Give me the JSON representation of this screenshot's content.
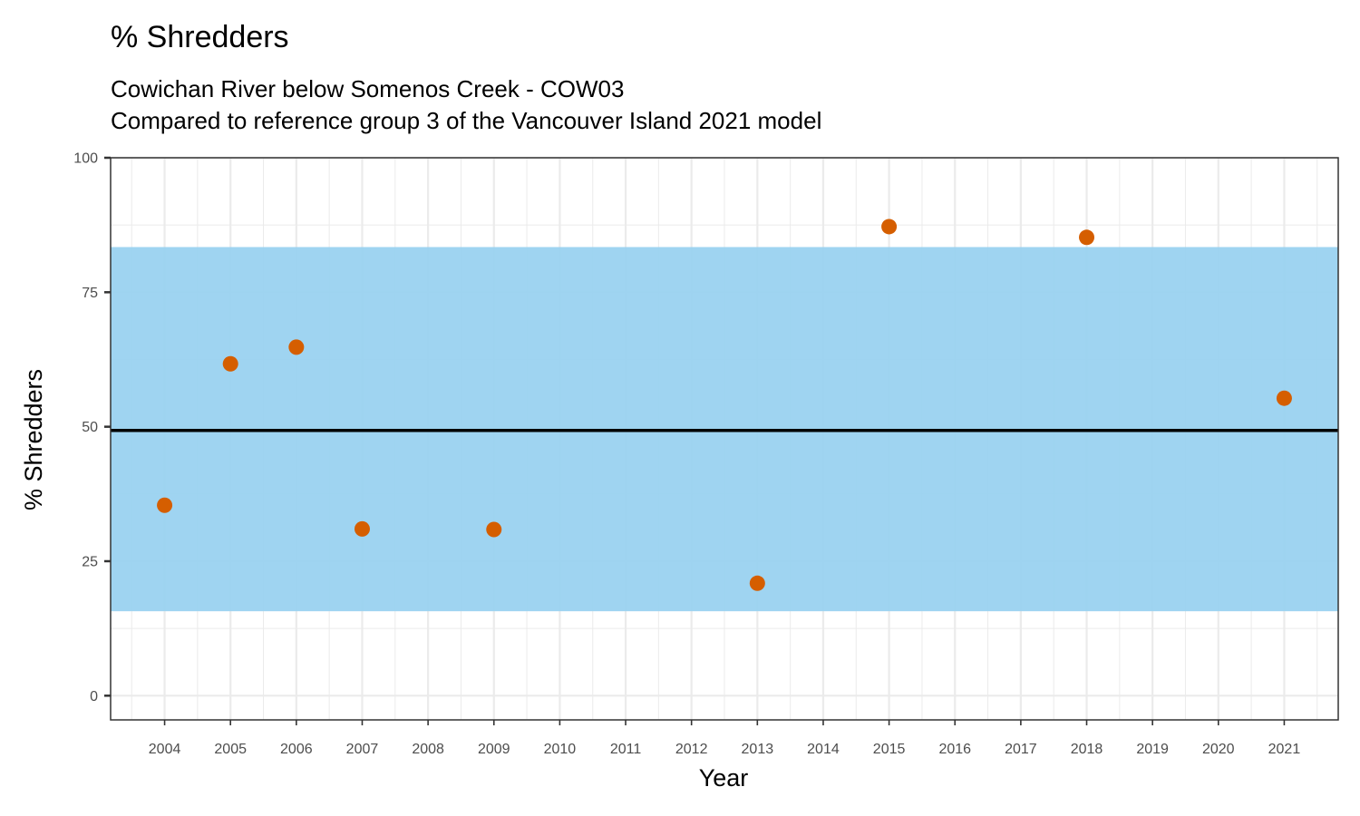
{
  "chart_data": {
    "type": "scatter",
    "title": "% Shredders",
    "subtitle": [
      "Cowichan River below Somenos Creek - COW03",
      "Compared to reference group 3 of the Vancouver Island 2021 model"
    ],
    "xlabel": "Year",
    "ylabel": "% Shredders",
    "xlim": [
      2003.18,
      2021.82
    ],
    "ylim": [
      -4.5,
      100
    ],
    "x_ticks": [
      2004,
      2005,
      2006,
      2007,
      2008,
      2009,
      2010,
      2011,
      2012,
      2013,
      2014,
      2015,
      2016,
      2017,
      2018,
      2019,
      2020,
      2021
    ],
    "y_ticks": [
      0,
      25,
      50,
      75,
      100
    ],
    "grid": true,
    "reference_band": {
      "lower": 15.7,
      "upper": 83.4,
      "color": "#9ad2f0"
    },
    "reference_line": {
      "value": 49.3,
      "color": "#000000"
    },
    "point_color": "#d55e00",
    "points": [
      {
        "x": 2004,
        "y": 35.4
      },
      {
        "x": 2005,
        "y": 61.7
      },
      {
        "x": 2006,
        "y": 64.8
      },
      {
        "x": 2007,
        "y": 31.0
      },
      {
        "x": 2009,
        "y": 30.9
      },
      {
        "x": 2013,
        "y": 20.9
      },
      {
        "x": 2015,
        "y": 87.2
      },
      {
        "x": 2018,
        "y": 85.2
      },
      {
        "x": 2021,
        "y": 55.3
      }
    ]
  }
}
